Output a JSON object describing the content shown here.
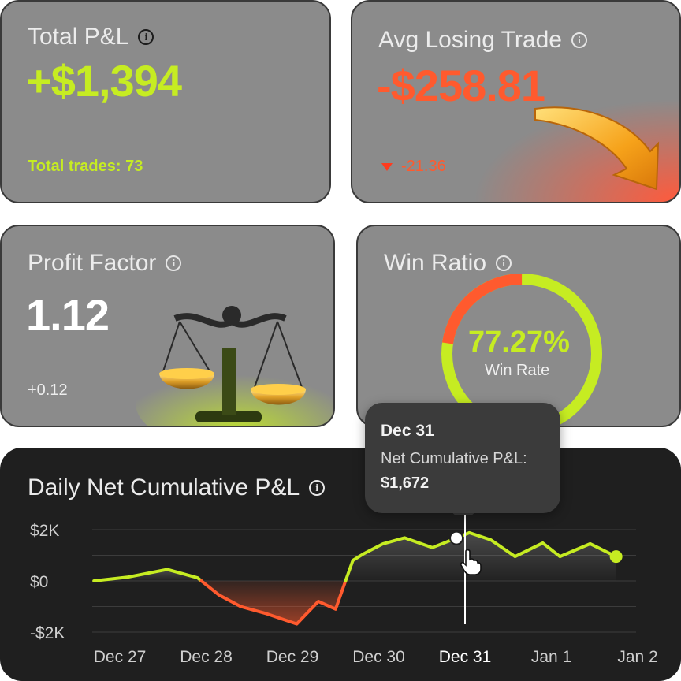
{
  "cards": {
    "total_pnl": {
      "title": "Total P&L",
      "value": "+$1,394",
      "footer": "Total trades: 73"
    },
    "avg_losing_trade": {
      "title": "Avg Losing Trade",
      "value": "-$258.81",
      "change": "-21.36"
    },
    "profit_factor": {
      "title": "Profit Factor",
      "value": "1.12",
      "change": "+0.12"
    },
    "win_ratio": {
      "title": "Win Ratio",
      "percent": "77.27%",
      "label": "Win Rate",
      "win_fraction": 0.7727
    }
  },
  "tooltip": {
    "date": "Dec 31",
    "label": "Net Cumulative P&L:",
    "value": "$1,672"
  },
  "colors": {
    "positive": "#c6ec22",
    "negative": "#ff5a2e",
    "card_bg": "#8b8b8b",
    "chart_bg": "#1f1f1f"
  },
  "icons": [
    "info-icon",
    "caret-down-icon",
    "arrow-down-icon",
    "scale-icon",
    "hand-cursor-icon"
  ],
  "chart_data": {
    "type": "line",
    "title": "Daily Net Cumulative P&L",
    "y_ticks": [
      "$2K",
      "$0",
      "-$2K"
    ],
    "x_ticks": [
      "Dec 27",
      "Dec 28",
      "Dec 29",
      "Dec 30",
      "Dec 31",
      "Jan 1",
      "Jan 2"
    ],
    "active_tick": "Dec 31",
    "ylim": [
      -2000,
      2000
    ],
    "grid": true,
    "series": [
      {
        "x": [
          -0.3,
          0.1,
          0.55,
          0.9,
          1.15,
          1.4,
          1.7,
          2.05,
          2.3,
          2.5,
          2.7,
          2.82,
          3.05,
          3.3,
          3.62,
          3.9,
          4.05,
          4.3,
          4.58,
          4.9,
          5.1,
          5.45,
          5.75
        ],
        "y": [
          0,
          150,
          450,
          120,
          -550,
          -1000,
          -1280,
          -1680,
          -800,
          -1100,
          800,
          1050,
          1450,
          1680,
          1300,
          1672,
          1880,
          1600,
          950,
          1480,
          950,
          1450,
          950
        ]
      }
    ]
  }
}
